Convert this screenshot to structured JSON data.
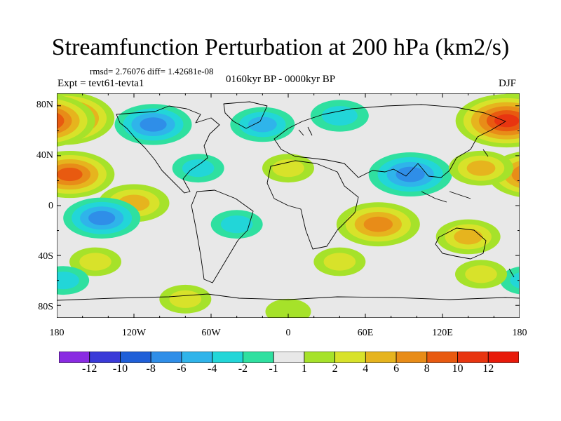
{
  "title": "Streamfunction Perturbation at 200 hPa (km2/s)",
  "stats_line": "rmsd= 2.76076 diff= 1.42681e-08",
  "experiment": "Expt = tevt61-tevta1",
  "period": "0160kyr BP - 0000kyr BP",
  "season": "DJF",
  "lat_ticks": [
    "80N",
    "40N",
    "0",
    "40S",
    "80S"
  ],
  "lon_ticks": [
    "180",
    "120W",
    "60W",
    "0",
    "60E",
    "120E",
    "180"
  ],
  "colorbar": {
    "labels": [
      "-12",
      "-10",
      "-8",
      "-6",
      "-4",
      "-2",
      "-1",
      "1",
      "2",
      "4",
      "6",
      "8",
      "10",
      "12"
    ],
    "colors": [
      "#8a2be2",
      "#3a3ad8",
      "#1f5fd8",
      "#2f8ee8",
      "#2fb4ea",
      "#22d6d8",
      "#2fe0a0",
      "#e8e8e8",
      "#a6e22a",
      "#d8e22a",
      "#e6b41e",
      "#e88c18",
      "#e85a10",
      "#e83510",
      "#e81a0a"
    ]
  },
  "chart_data": {
    "type": "heatmap",
    "title": "Streamfunction Perturbation at 200 hPa (km2/s)",
    "variable": "Streamfunction perturbation, 200 hPa",
    "units": "km2/s",
    "season": "DJF",
    "period": "0160kyr BP - 0000kyr BP",
    "experiment": "tevt61-tevta1",
    "rmsd": 2.76076,
    "diff": 1.42681e-08,
    "xlim": [
      -180,
      180
    ],
    "ylim": [
      -90,
      90
    ],
    "contour_levels": [
      -12,
      -10,
      -8,
      -6,
      -4,
      -2,
      -1,
      1,
      2,
      4,
      6,
      8,
      10,
      12
    ],
    "features": [
      {
        "lon": -175,
        "lat": 70,
        "value": 10
      },
      {
        "lon": 170,
        "lat": 68,
        "value": 10
      },
      {
        "lon": -170,
        "lat": 25,
        "value": 8
      },
      {
        "lon": -105,
        "lat": 65,
        "value": -6
      },
      {
        "lon": -20,
        "lat": 65,
        "value": -4
      },
      {
        "lon": 40,
        "lat": 72,
        "value": -3
      },
      {
        "lon": 95,
        "lat": 25,
        "value": -7
      },
      {
        "lon": 150,
        "lat": 30,
        "value": 4
      },
      {
        "lon": -70,
        "lat": 30,
        "value": -2
      },
      {
        "lon": 0,
        "lat": 30,
        "value": 2
      },
      {
        "lon": -120,
        "lat": 2,
        "value": 5
      },
      {
        "lon": -145,
        "lat": -10,
        "value": -6
      },
      {
        "lon": 70,
        "lat": -15,
        "value": 7
      },
      {
        "lon": -40,
        "lat": -15,
        "value": -2
      },
      {
        "lon": 140,
        "lat": -25,
        "value": 4
      },
      {
        "lon": -150,
        "lat": -45,
        "value": 2
      },
      {
        "lon": -175,
        "lat": -60,
        "value": -2
      },
      {
        "lon": 40,
        "lat": -45,
        "value": 2
      },
      {
        "lon": 150,
        "lat": -55,
        "value": 2
      },
      {
        "lon": -80,
        "lat": -75,
        "value": 2
      },
      {
        "lon": 0,
        "lat": -85,
        "value": 1
      }
    ]
  }
}
